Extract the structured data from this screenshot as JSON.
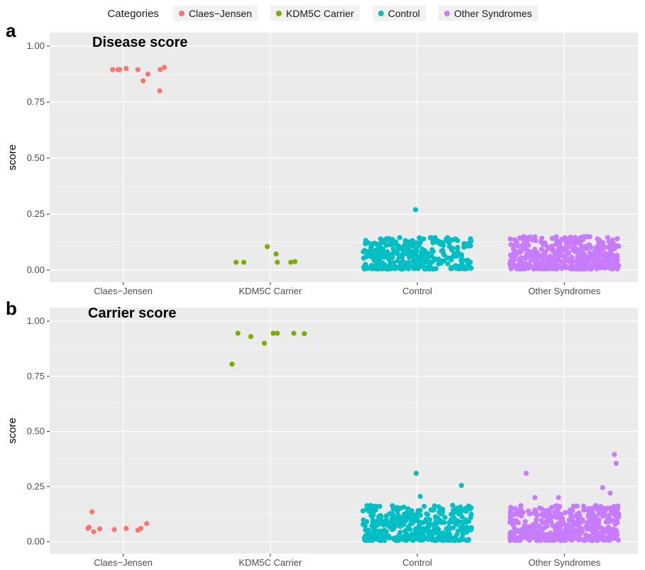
{
  "legend": {
    "title": "Categories",
    "items": [
      {
        "label": "Claes−Jensen",
        "color": "#F8766D"
      },
      {
        "label": "KDM5C Carrier",
        "color": "#7CAE00"
      },
      {
        "label": "Control",
        "color": "#00BFC4"
      },
      {
        "label": "Other Syndromes",
        "color": "#C77CFF"
      }
    ]
  },
  "chart_data": [
    {
      "type": "scatter",
      "panel": "a",
      "title": "Disease score",
      "ylabel": "score",
      "xlabel": "",
      "ylim": [
        0,
        1
      ],
      "yticks": [
        "0.00",
        "0.25",
        "0.50",
        "0.75",
        "1.00"
      ],
      "categories": [
        "Claes−Jensen",
        "KDM5C Carrier",
        "Control",
        "Other Syndromes"
      ],
      "grid": true,
      "legend": "top",
      "series": [
        {
          "category": "Claes−Jensen",
          "color": "#F8766D",
          "points": [
            [
              -0.18,
              0.895
            ],
            [
              -0.09,
              0.895
            ],
            [
              -0.06,
              0.895
            ],
            [
              0.05,
              0.9
            ],
            [
              0.25,
              0.895
            ],
            [
              0.34,
              0.845
            ],
            [
              0.42,
              0.875
            ],
            [
              0.62,
              0.8
            ],
            [
              0.63,
              0.895
            ],
            [
              0.7,
              0.905
            ]
          ]
        },
        {
          "category": "KDM5C Carrier",
          "color": "#7CAE00",
          "points": [
            [
              -0.58,
              0.035
            ],
            [
              -0.45,
              0.035
            ],
            [
              -0.05,
              0.105
            ],
            [
              0.1,
              0.072
            ],
            [
              0.12,
              0.035
            ],
            [
              0.35,
              0.035
            ],
            [
              0.42,
              0.038
            ]
          ]
        },
        {
          "category": "Control",
          "color": "#00BFC4",
          "points": [
            [
              -0.03,
              0.27
            ],
            [
              -0.3,
              0.145
            ],
            [
              0.05,
              0.14
            ],
            [
              0.3,
              0.145
            ]
          ],
          "cluster": {
            "count": 340,
            "ymin": 0.005,
            "ymax": 0.145,
            "xspread": 0.37
          }
        },
        {
          "category": "Other Syndromes",
          "color": "#C77CFF",
          "points": [],
          "cluster": {
            "count": 460,
            "ymin": 0.005,
            "ymax": 0.15,
            "xspread": 0.37
          }
        }
      ]
    },
    {
      "type": "scatter",
      "panel": "b",
      "title": "Carrier score",
      "ylabel": "score",
      "xlabel": "",
      "ylim": [
        0,
        1
      ],
      "yticks": [
        "0.00",
        "0.25",
        "0.50",
        "0.75",
        "1.00"
      ],
      "categories": [
        "Claes−Jensen",
        "KDM5C Carrier",
        "Control",
        "Other Syndromes"
      ],
      "grid": true,
      "legend": "top",
      "series": [
        {
          "category": "Claes−Jensen",
          "color": "#F8766D",
          "points": [
            [
              -0.6,
              0.06
            ],
            [
              -0.58,
              0.065
            ],
            [
              -0.53,
              0.135
            ],
            [
              -0.5,
              0.045
            ],
            [
              -0.4,
              0.058
            ],
            [
              -0.15,
              0.055
            ],
            [
              0.05,
              0.06
            ],
            [
              0.25,
              0.052
            ],
            [
              0.3,
              0.06
            ],
            [
              0.4,
              0.082
            ]
          ]
        },
        {
          "category": "KDM5C Carrier",
          "color": "#7CAE00",
          "points": [
            [
              -0.65,
              0.805
            ],
            [
              -0.55,
              0.945
            ],
            [
              -0.33,
              0.93
            ],
            [
              -0.1,
              0.9
            ],
            [
              0.05,
              0.945
            ],
            [
              0.12,
              0.945
            ],
            [
              0.4,
              0.945
            ],
            [
              0.58,
              0.943
            ]
          ]
        },
        {
          "category": "Control",
          "color": "#00BFC4",
          "points": [
            [
              -0.02,
              0.31
            ],
            [
              0.05,
              0.205
            ],
            [
              0.75,
              0.255
            ],
            [
              0.6,
              0.165
            ]
          ],
          "cluster": {
            "count": 380,
            "ymin": 0.005,
            "ymax": 0.165,
            "xspread": 0.37
          }
        },
        {
          "category": "Other Syndromes",
          "color": "#C77CFF",
          "points": [
            [
              -0.65,
              0.31
            ],
            [
              -0.1,
              0.2
            ],
            [
              0.65,
              0.245
            ],
            [
              0.85,
              0.395
            ],
            [
              0.88,
              0.355
            ],
            [
              0.78,
              0.22
            ],
            [
              -0.5,
              0.2
            ]
          ],
          "cluster": {
            "count": 460,
            "ymin": 0.005,
            "ymax": 0.165,
            "xspread": 0.37
          }
        }
      ]
    }
  ]
}
